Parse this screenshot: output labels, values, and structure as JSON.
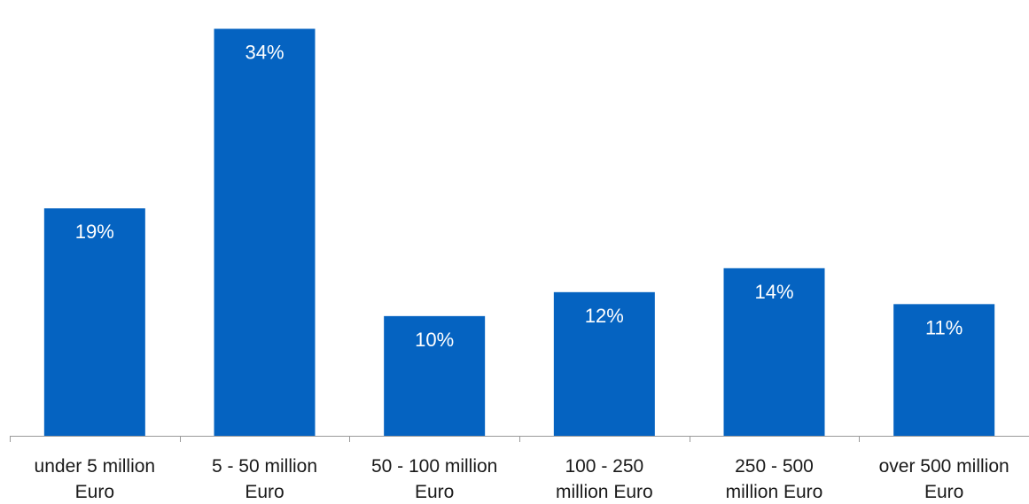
{
  "colors": {
    "bar": "#0563c1",
    "axis": "#9a9a9a",
    "value_text": "#ffffff",
    "label_text": "#1a1a1a"
  },
  "chart_data": {
    "type": "bar",
    "categories": [
      [
        "under 5 million",
        "Euro"
      ],
      [
        "5 - 50 million",
        "Euro"
      ],
      [
        "50 - 100 million",
        "Euro"
      ],
      [
        "100 - 250",
        "million Euro"
      ],
      [
        "250 - 500",
        "million Euro"
      ],
      [
        "over 500 million",
        "Euro"
      ]
    ],
    "values": [
      19,
      34,
      10,
      12,
      14,
      11
    ],
    "value_labels": [
      "19%",
      "34%",
      "10%",
      "12%",
      "14%",
      "11%"
    ],
    "ylim": [
      0,
      35
    ],
    "grid": false,
    "legend": "none",
    "title": "",
    "xlabel": "",
    "ylabel": ""
  }
}
